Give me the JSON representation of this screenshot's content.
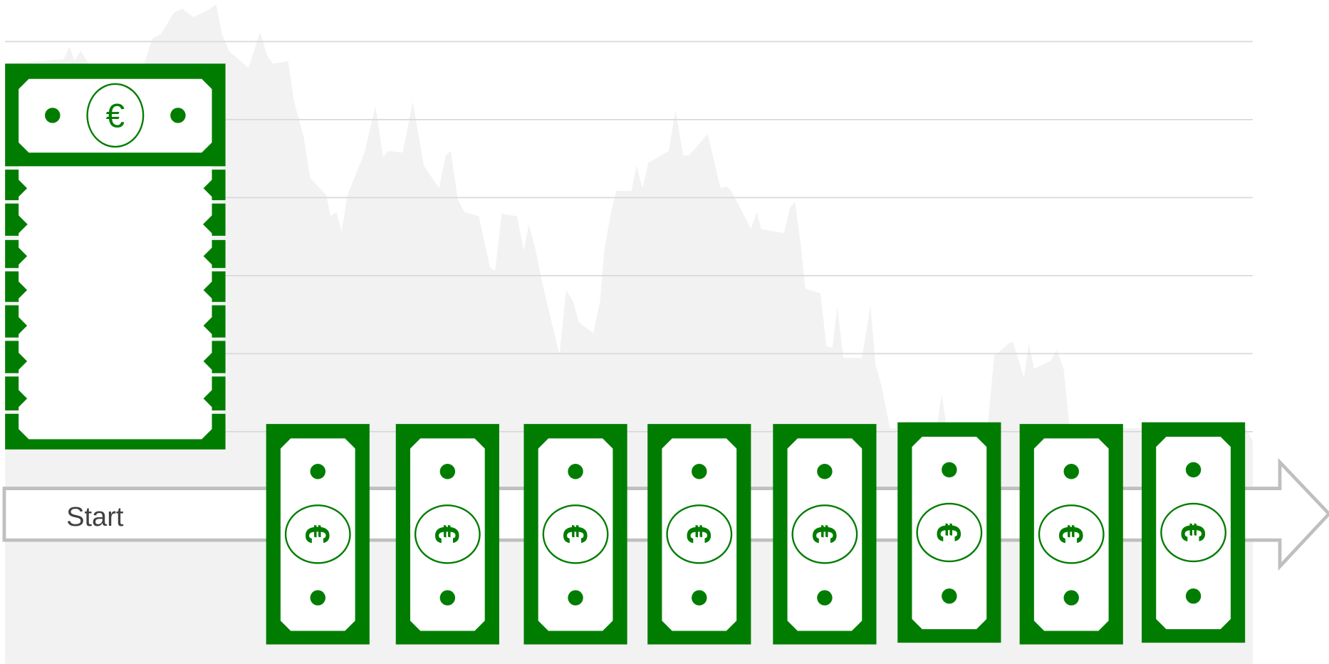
{
  "start_label": "Start",
  "currency_symbol": "€"
}
